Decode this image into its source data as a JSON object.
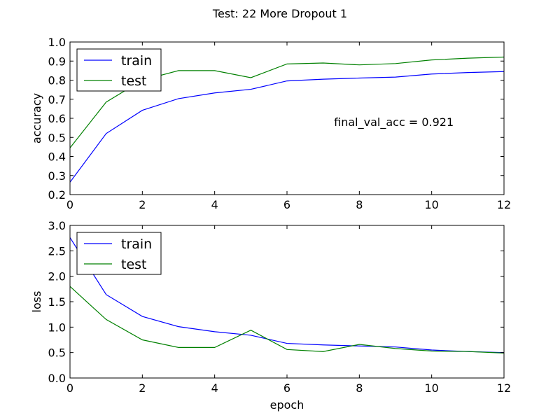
{
  "figure": {
    "suptitle": "Test: 22 More Dropout 1"
  },
  "colors": {
    "train": "#0000ff",
    "test": "#008000",
    "axes": "#000000",
    "background": "#ffffff"
  },
  "chart_data": [
    {
      "type": "line",
      "title": "",
      "xlabel": "",
      "ylabel": "accuracy",
      "xlim": [
        0,
        12
      ],
      "ylim": [
        0.2,
        1.0
      ],
      "xticks": [
        0,
        2,
        4,
        6,
        8,
        10,
        12
      ],
      "xtick_labels": [
        "0",
        "2",
        "4",
        "6",
        "8",
        "10",
        "12"
      ],
      "yticks": [
        0.2,
        0.3,
        0.4,
        0.5,
        0.6,
        0.7,
        0.8,
        0.9,
        1.0
      ],
      "ytick_labels": [
        "0.2",
        "0.3",
        "0.4",
        "0.5",
        "0.6",
        "0.7",
        "0.8",
        "0.9",
        "1.0"
      ],
      "grid": false,
      "legend_position": "top-left",
      "annotation": {
        "text": "final_val_acc = 0.921",
        "x": 7.3,
        "y": 0.56
      },
      "x": [
        0,
        1,
        2,
        3,
        4,
        5,
        6,
        7,
        8,
        9,
        10,
        11,
        12
      ],
      "series": [
        {
          "name": "train",
          "color": "#0000ff",
          "values": [
            0.265,
            0.52,
            0.642,
            0.703,
            0.733,
            0.752,
            0.796,
            0.805,
            0.811,
            0.816,
            0.832,
            0.84,
            0.845
          ]
        },
        {
          "name": "test",
          "color": "#008000",
          "values": [
            0.445,
            0.685,
            0.8,
            0.85,
            0.85,
            0.813,
            0.885,
            0.89,
            0.88,
            0.887,
            0.906,
            0.915,
            0.921
          ]
        }
      ]
    },
    {
      "type": "line",
      "title": "",
      "xlabel": "epoch",
      "ylabel": "loss",
      "xlim": [
        0,
        12
      ],
      "ylim": [
        0.0,
        3.0
      ],
      "xticks": [
        0,
        2,
        4,
        6,
        8,
        10,
        12
      ],
      "xtick_labels": [
        "0",
        "2",
        "4",
        "6",
        "8",
        "10",
        "12"
      ],
      "yticks": [
        0.0,
        0.5,
        1.0,
        1.5,
        2.0,
        2.5,
        3.0
      ],
      "ytick_labels": [
        "0.0",
        "0.5",
        "1.0",
        "1.5",
        "2.0",
        "2.5",
        "3.0"
      ],
      "grid": false,
      "legend_position": "top-left",
      "x": [
        0,
        1,
        2,
        3,
        4,
        5,
        6,
        7,
        8,
        9,
        10,
        11,
        12
      ],
      "series": [
        {
          "name": "train",
          "color": "#0000ff",
          "values": [
            2.76,
            1.64,
            1.21,
            1.01,
            0.91,
            0.84,
            0.68,
            0.65,
            0.63,
            0.61,
            0.55,
            0.52,
            0.5
          ]
        },
        {
          "name": "test",
          "color": "#008000",
          "values": [
            1.8,
            1.15,
            0.75,
            0.6,
            0.6,
            0.94,
            0.56,
            0.52,
            0.66,
            0.58,
            0.53,
            0.52,
            0.49
          ]
        }
      ]
    }
  ]
}
